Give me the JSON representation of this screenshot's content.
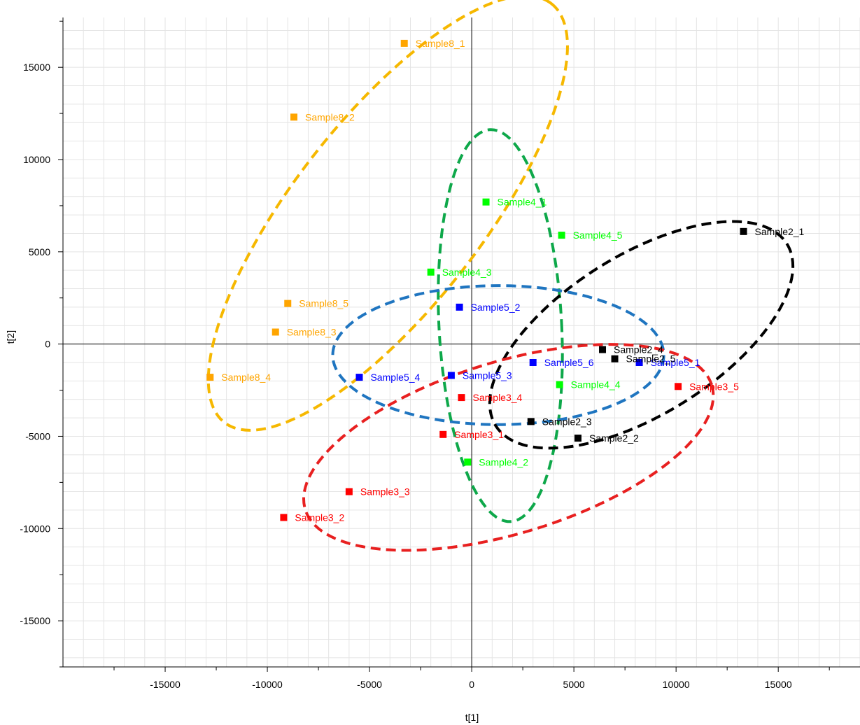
{
  "chart_data": {
    "type": "scatter",
    "title": "",
    "xlabel": "t[1]",
    "ylabel": "t[2]",
    "xlim": [
      -20000,
      19000
    ],
    "ylim": [
      -17500,
      17700
    ],
    "xticks": [
      -15000,
      -10000,
      -5000,
      0,
      5000,
      10000,
      15000
    ],
    "yticks": [
      -15000,
      -10000,
      -5000,
      0,
      5000,
      10000,
      15000
    ],
    "grid": true,
    "legend": "none",
    "series": [
      {
        "color": "#ffa500",
        "points": [
          {
            "label": "Sample8_1",
            "x": -3300,
            "y": 16300
          },
          {
            "label": "Sample8_2",
            "x": -8700,
            "y": 12300
          },
          {
            "label": "Sample8_5",
            "x": -9000,
            "y": 2200
          },
          {
            "label": "Sample8_3",
            "x": -9600,
            "y": 650
          },
          {
            "label": "Sample8_4",
            "x": -12800,
            "y": -1800
          }
        ],
        "ellipse": {
          "cx": -4100,
          "cy": 7100,
          "rx": 13000,
          "ry": 4600,
          "rotation_deg": -52,
          "color": "#f6b800"
        }
      },
      {
        "color": "#00ff00",
        "points": [
          {
            "label": "Sample4_1",
            "x": 700,
            "y": 7700
          },
          {
            "label": "Sample4_5",
            "x": 4400,
            "y": 5900
          },
          {
            "label": "Sample4_3",
            "x": -2000,
            "y": 3900
          },
          {
            "label": "Sample4_4",
            "x": 4300,
            "y": -2200
          },
          {
            "label": "Sample4_2",
            "x": -200,
            "y": -6400
          }
        ],
        "ellipse": {
          "cx": 1400,
          "cy": 1000,
          "rx": 3000,
          "ry": 9600,
          "rotation_deg": -3,
          "color": "#0ea84a"
        }
      },
      {
        "color": "#0000ff",
        "points": [
          {
            "label": "Sample5_2",
            "x": -600,
            "y": 2000
          },
          {
            "label": "Sample5_6",
            "x": 3000,
            "y": -1000
          },
          {
            "label": "Sample5_1",
            "x": 8200,
            "y": -1000
          },
          {
            "label": "Sample5_4",
            "x": -5500,
            "y": -1800
          },
          {
            "label": "Sample5_3",
            "x": -1000,
            "y": -1700
          }
        ],
        "ellipse": {
          "cx": 1300,
          "cy": -600,
          "rx": 8100,
          "ry": 3400,
          "rotation_deg": 0,
          "color": "#1f75c0"
        }
      },
      {
        "color": "#000000",
        "points": [
          {
            "label": "Sample2_1",
            "x": 13300,
            "y": 6100
          },
          {
            "label": "Sample2_4",
            "x": 6400,
            "y": -300
          },
          {
            "label": "Sample2_5",
            "x": 7000,
            "y": -800
          },
          {
            "label": "Sample2_3",
            "x": 2900,
            "y": -4200
          },
          {
            "label": "Sample2_2",
            "x": 5200,
            "y": -5100
          }
        ],
        "ellipse": {
          "cx": 8300,
          "cy": 500,
          "rx": 8400,
          "ry": 3900,
          "rotation_deg": -32,
          "color": "#000000"
        }
      },
      {
        "color": "#ff0000",
        "points": [
          {
            "label": "Sample3_5",
            "x": 10100,
            "y": -2300
          },
          {
            "label": "Sample3_4",
            "x": -500,
            "y": -2900
          },
          {
            "label": "Sample3_1",
            "x": -1400,
            "y": -4900
          },
          {
            "label": "Sample3_3",
            "x": -6000,
            "y": -8000
          },
          {
            "label": "Sample3_2",
            "x": -9200,
            "y": -9400
          }
        ],
        "ellipse": {
          "cx": 1800,
          "cy": -5600,
          "rx": 10400,
          "ry": 4200,
          "rotation_deg": -17,
          "color": "#e82020"
        }
      }
    ]
  }
}
